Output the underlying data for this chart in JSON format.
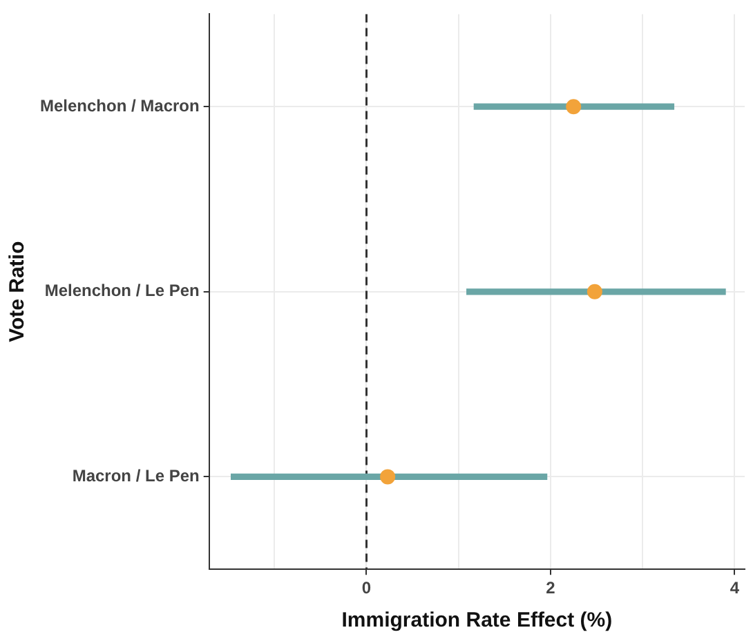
{
  "chart_data": {
    "type": "scatter",
    "orientation": "horizontal",
    "xlabel": "Immigration Rate Effect (%)",
    "ylabel": "Vote Ratio",
    "categories": [
      "Melenchon / Macron",
      "Melenchon / Le Pen",
      "Macron / Le Pen"
    ],
    "series": [
      {
        "type": "bar",
        "color": "#6aa6a6",
        "base": [
          1.17,
          1.09,
          -1.47
        ],
        "values": [
          2.17,
          2.81,
          3.43
        ]
      },
      {
        "color": "#f2a33a",
        "values": [
          2.25,
          2.48,
          0.23
        ]
      }
    ],
    "xlim": [
      -1.71,
      4.11
    ],
    "xticks": [
      {
        "value": -1,
        "label": null
      },
      0,
      {
        "value": 1,
        "label": null
      },
      2,
      {
        "value": 3,
        "label": null
      },
      4
    ],
    "ref_lines": [
      {
        "axis": "x",
        "value": 0,
        "color": "#333333",
        "line_style": "dashed"
      }
    ],
    "grid": true,
    "marker": "circle",
    "legend": false
  }
}
